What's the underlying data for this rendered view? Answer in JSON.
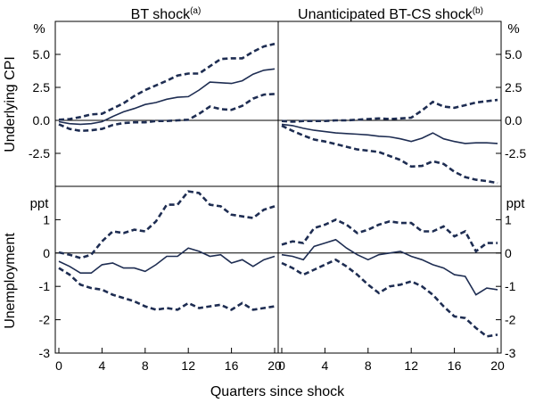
{
  "chart_data": [
    {
      "type": "line",
      "panel": "top-left",
      "title": "BT shock",
      "title_note": "(a)",
      "ylabel": "Underlying CPI",
      "unit": "%",
      "xlabel": "Quarters since shock",
      "xlim": [
        0,
        20
      ],
      "ylim": [
        -5,
        7.5
      ],
      "yticks": [
        -2.5,
        0,
        2.5,
        5
      ],
      "ytick_labels": [
        "-2.5",
        "0.0",
        "2.5",
        "5.0"
      ],
      "x": [
        0,
        1,
        2,
        3,
        4,
        5,
        6,
        7,
        8,
        9,
        10,
        11,
        12,
        13,
        14,
        15,
        16,
        17,
        18,
        19,
        20
      ],
      "series": [
        {
          "name": "upper band",
          "style": "dashed",
          "values": [
            0.05,
            0.1,
            0.25,
            0.45,
            0.5,
            0.9,
            1.3,
            1.85,
            2.3,
            2.65,
            3.0,
            3.4,
            3.55,
            3.55,
            4.1,
            4.65,
            4.7,
            4.7,
            5.2,
            5.6,
            5.8
          ]
        },
        {
          "name": "point estimate",
          "style": "solid",
          "values": [
            -0.1,
            -0.25,
            -0.3,
            -0.25,
            -0.1,
            0.3,
            0.65,
            0.9,
            1.2,
            1.35,
            1.6,
            1.75,
            1.8,
            2.3,
            2.9,
            2.85,
            2.8,
            3.0,
            3.5,
            3.8,
            3.9
          ]
        },
        {
          "name": "lower band",
          "style": "dashed",
          "values": [
            -0.3,
            -0.65,
            -0.8,
            -0.75,
            -0.65,
            -0.35,
            -0.2,
            -0.15,
            -0.15,
            -0.05,
            -0.05,
            0.0,
            0.05,
            0.5,
            1.05,
            0.85,
            0.8,
            1.1,
            1.65,
            1.95,
            2.0
          ]
        }
      ]
    },
    {
      "type": "line",
      "panel": "top-right",
      "title": "Unanticipated BT-CS shock",
      "title_note": "(b)",
      "ylabel": "Underlying CPI",
      "unit": "%",
      "xlim": [
        0,
        20
      ],
      "ylim": [
        -5,
        7.5
      ],
      "yticks": [
        -2.5,
        0,
        2.5,
        5
      ],
      "ytick_labels": [
        "-2.5",
        "0.0",
        "2.5",
        "5.0"
      ],
      "x": [
        0,
        1,
        2,
        3,
        4,
        5,
        6,
        7,
        8,
        9,
        10,
        11,
        12,
        13,
        14,
        15,
        16,
        17,
        18,
        19,
        20
      ],
      "series": [
        {
          "name": "upper band",
          "style": "dashed",
          "values": [
            -0.05,
            -0.1,
            -0.05,
            -0.05,
            -0.05,
            0.0,
            0.0,
            0.05,
            0.1,
            0.15,
            0.1,
            0.15,
            0.2,
            0.75,
            1.4,
            1.05,
            0.95,
            1.15,
            1.35,
            1.45,
            1.55
          ]
        },
        {
          "name": "point estimate",
          "style": "solid",
          "values": [
            -0.3,
            -0.4,
            -0.6,
            -0.75,
            -0.85,
            -0.95,
            -1.0,
            -1.05,
            -1.1,
            -1.2,
            -1.25,
            -1.4,
            -1.6,
            -1.35,
            -0.95,
            -1.4,
            -1.6,
            -1.75,
            -1.7,
            -1.7,
            -1.75
          ]
        },
        {
          "name": "lower band",
          "style": "dashed",
          "values": [
            -0.4,
            -0.8,
            -1.15,
            -1.45,
            -1.6,
            -1.8,
            -2.0,
            -2.2,
            -2.3,
            -2.4,
            -2.7,
            -3.0,
            -3.5,
            -3.45,
            -3.1,
            -3.3,
            -3.9,
            -4.3,
            -4.5,
            -4.6,
            -4.75
          ]
        }
      ]
    },
    {
      "type": "line",
      "panel": "bottom-left",
      "title": "",
      "ylabel": "Unemployment",
      "unit": "ppt",
      "xlabel": "Quarters since shock",
      "xlim": [
        0,
        20
      ],
      "xticks": [
        0,
        4,
        8,
        12,
        16,
        20
      ],
      "ylim": [
        -3,
        2
      ],
      "yticks": [
        -3,
        -2,
        -1,
        0,
        1
      ],
      "ytick_labels": [
        "-3",
        "-2",
        "-1",
        "0",
        "1"
      ],
      "x": [
        0,
        1,
        2,
        3,
        4,
        5,
        6,
        7,
        8,
        9,
        10,
        11,
        12,
        13,
        14,
        15,
        16,
        17,
        18,
        19,
        20
      ],
      "series": [
        {
          "name": "upper band",
          "style": "dashed",
          "values": [
            0.02,
            -0.05,
            -0.15,
            -0.05,
            0.35,
            0.65,
            0.6,
            0.7,
            0.65,
            0.95,
            1.45,
            1.45,
            1.85,
            1.8,
            1.45,
            1.4,
            1.15,
            1.1,
            1.05,
            1.3,
            1.4
          ]
        },
        {
          "name": "point estimate",
          "style": "solid",
          "values": [
            -0.25,
            -0.4,
            -0.6,
            -0.6,
            -0.35,
            -0.3,
            -0.45,
            -0.45,
            -0.55,
            -0.35,
            -0.1,
            -0.1,
            0.15,
            0.05,
            -0.1,
            -0.05,
            -0.3,
            -0.2,
            -0.4,
            -0.2,
            -0.1
          ]
        },
        {
          "name": "lower band",
          "style": "dashed",
          "values": [
            -0.45,
            -0.65,
            -0.95,
            -1.05,
            -1.1,
            -1.25,
            -1.35,
            -1.45,
            -1.6,
            -1.7,
            -1.65,
            -1.7,
            -1.5,
            -1.65,
            -1.6,
            -1.55,
            -1.7,
            -1.5,
            -1.7,
            -1.65,
            -1.6
          ]
        }
      ]
    },
    {
      "type": "line",
      "panel": "bottom-right",
      "title": "",
      "ylabel": "Unemployment",
      "unit": "ppt",
      "xlim": [
        0,
        20
      ],
      "xticks": [
        0,
        4,
        8,
        12,
        16,
        20
      ],
      "ylim": [
        -3,
        2
      ],
      "yticks": [
        -3,
        -2,
        -1,
        0,
        1
      ],
      "ytick_labels": [
        "-3",
        "-2",
        "-1",
        "0",
        "1"
      ],
      "x": [
        0,
        1,
        2,
        3,
        4,
        5,
        6,
        7,
        8,
        9,
        10,
        11,
        12,
        13,
        14,
        15,
        16,
        17,
        18,
        19,
        20
      ],
      "series": [
        {
          "name": "upper band",
          "style": "dashed",
          "values": [
            0.25,
            0.35,
            0.3,
            0.75,
            0.85,
            1.0,
            0.85,
            0.6,
            0.7,
            0.85,
            0.95,
            0.9,
            0.9,
            0.65,
            0.65,
            0.8,
            0.5,
            0.65,
            0.05,
            0.3,
            0.3
          ]
        },
        {
          "name": "point estimate",
          "style": "solid",
          "values": [
            -0.05,
            -0.1,
            -0.2,
            0.2,
            0.3,
            0.4,
            0.15,
            -0.05,
            -0.2,
            -0.05,
            0.0,
            0.05,
            -0.1,
            -0.2,
            -0.35,
            -0.45,
            -0.65,
            -0.7,
            -1.25,
            -1.05,
            -1.1
          ]
        },
        {
          "name": "lower band",
          "style": "dashed",
          "values": [
            -0.3,
            -0.45,
            -0.65,
            -0.5,
            -0.35,
            -0.2,
            -0.4,
            -0.65,
            -0.95,
            -1.2,
            -1.0,
            -0.95,
            -0.85,
            -1.0,
            -1.25,
            -1.6,
            -1.9,
            -1.95,
            -2.25,
            -2.5,
            -2.45
          ]
        }
      ]
    }
  ],
  "shared": {
    "xlabel": "Quarters since shock",
    "xticks": [
      0,
      4,
      8,
      12,
      16,
      20
    ],
    "xtick_labels": [
      "0",
      "4",
      "8",
      "12",
      "16",
      "20"
    ]
  }
}
